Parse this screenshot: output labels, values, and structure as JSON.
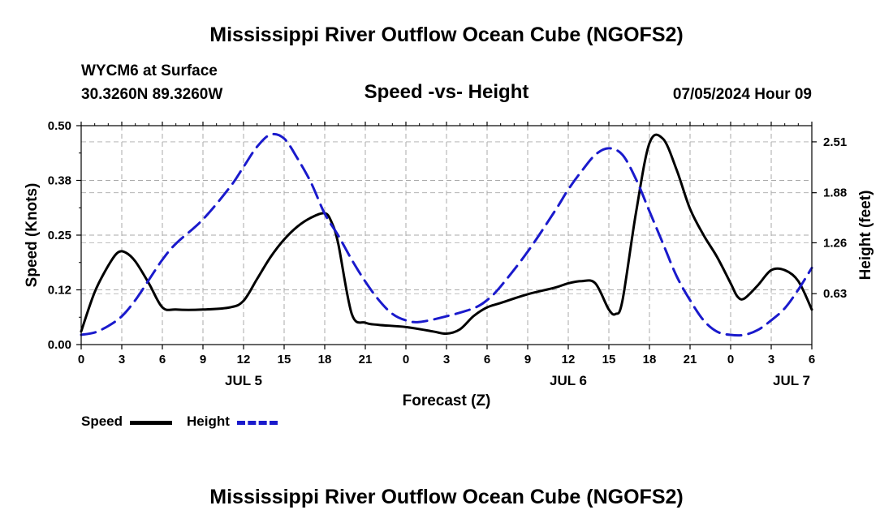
{
  "titles": {
    "main_top": "Mississippi River Outflow Ocean Cube (NGOFS2)",
    "main_bottom": "Mississippi River Outflow Ocean Cube (NGOFS2)"
  },
  "station": {
    "name": "WYCM6 at Surface",
    "coords": "30.3260N  89.3260W"
  },
  "subtitle": "Speed -vs- Height",
  "timestamp": "07/05/2024 Hour 09",
  "legend": {
    "speed_label": "Speed",
    "height_label": "Height"
  },
  "colors": {
    "speed": "#000000",
    "height": "#1a1acc",
    "grid": "#aaaaaa"
  },
  "chart_data": {
    "type": "line",
    "title": "Speed -vs- Height",
    "xlabel": "Forecast (Z)",
    "ylabel": "Speed (Knots)",
    "ylabel_right": "Height (feet)",
    "xlim": [
      0,
      54
    ],
    "ylim": [
      0,
      0.5
    ],
    "ylim_right": [
      0.0,
      2.71
    ],
    "x_ticks": [
      0,
      3,
      6,
      9,
      12,
      15,
      18,
      21,
      24,
      27,
      30,
      33,
      36,
      39,
      42,
      45,
      48,
      51,
      54
    ],
    "x_tick_labels": [
      "0",
      "3",
      "6",
      "9",
      "12",
      "15",
      "18",
      "21",
      "0",
      "3",
      "6",
      "9",
      "12",
      "15",
      "18",
      "21",
      "0",
      "3",
      "6"
    ],
    "date_labels": [
      {
        "x": 12,
        "label": "JUL 5"
      },
      {
        "x": 36,
        "label": "JUL 6"
      },
      {
        "x": 52.5,
        "label": "JUL 7"
      }
    ],
    "y_ticks": [
      0.0,
      0.125,
      0.25,
      0.375,
      0.5
    ],
    "y_tick_labels": [
      "0.00",
      "0.12",
      "0.25",
      "0.38",
      "0.50"
    ],
    "y_ticks_right": [
      0.63,
      1.26,
      1.88,
      2.51
    ],
    "y_tick_labels_right": [
      "0.63",
      "1.26",
      "1.88",
      "2.51"
    ],
    "grid": true,
    "series": [
      {
        "name": "Speed",
        "axis": "left",
        "style": "solid",
        "x": [
          0,
          1,
          2,
          2.7,
          3.3,
          4,
          5,
          6,
          7,
          9,
          11,
          12,
          13,
          14,
          15,
          16,
          17,
          18,
          18.5,
          19,
          20,
          21,
          22,
          24,
          26,
          27,
          28,
          29,
          30,
          31,
          33,
          35,
          36,
          37,
          38,
          39,
          39.5,
          40,
          41,
          42,
          43,
          44,
          45,
          46,
          47,
          48,
          48.5,
          49,
          50,
          51,
          52,
          53,
          54
        ],
        "values": [
          0.03,
          0.12,
          0.18,
          0.21,
          0.21,
          0.19,
          0.14,
          0.085,
          0.08,
          0.08,
          0.085,
          0.1,
          0.15,
          0.2,
          0.24,
          0.27,
          0.29,
          0.3,
          0.28,
          0.23,
          0.07,
          0.05,
          0.045,
          0.04,
          0.03,
          0.025,
          0.035,
          0.065,
          0.085,
          0.095,
          0.115,
          0.13,
          0.14,
          0.145,
          0.14,
          0.08,
          0.07,
          0.1,
          0.3,
          0.46,
          0.47,
          0.4,
          0.31,
          0.25,
          0.2,
          0.14,
          0.11,
          0.105,
          0.135,
          0.17,
          0.17,
          0.145,
          0.08
        ]
      },
      {
        "name": "Height",
        "axis": "right",
        "style": "dashed",
        "x": [
          0,
          1,
          2,
          3,
          4,
          5,
          6,
          7,
          9,
          11,
          12,
          13,
          14,
          15,
          16,
          17,
          18,
          19,
          20,
          21,
          22,
          23,
          24,
          25,
          27,
          29,
          30,
          31,
          33,
          35,
          36,
          37,
          38,
          39,
          40,
          41,
          42,
          43,
          44,
          45,
          46,
          47,
          48,
          49,
          50,
          51,
          52,
          53,
          54
        ],
        "values": [
          0.12,
          0.15,
          0.23,
          0.35,
          0.55,
          0.8,
          1.05,
          1.25,
          1.55,
          1.95,
          2.2,
          2.45,
          2.6,
          2.55,
          2.3,
          2.0,
          1.62,
          1.35,
          1.05,
          0.78,
          0.55,
          0.38,
          0.3,
          0.28,
          0.35,
          0.45,
          0.55,
          0.72,
          1.15,
          1.65,
          1.92,
          2.15,
          2.35,
          2.43,
          2.35,
          2.05,
          1.65,
          1.25,
          0.85,
          0.55,
          0.3,
          0.16,
          0.12,
          0.12,
          0.18,
          0.3,
          0.45,
          0.68,
          0.95
        ]
      }
    ]
  }
}
